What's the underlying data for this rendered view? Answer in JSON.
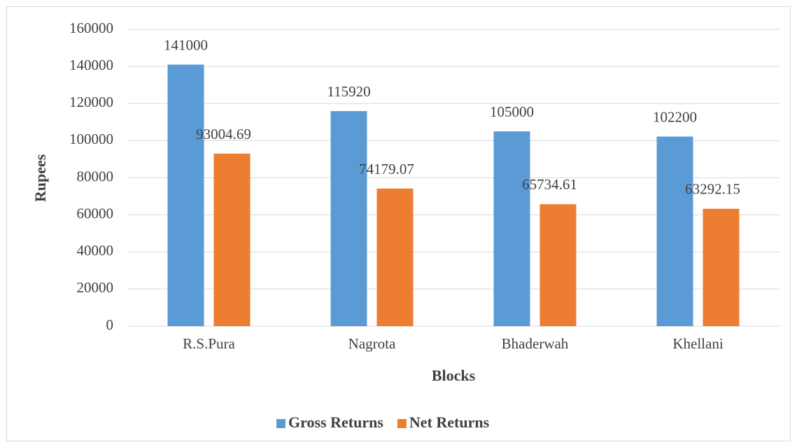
{
  "chart_data": {
    "type": "bar",
    "categories": [
      "R.S.Pura",
      "Nagrota",
      "Bhaderwah",
      "Khellani"
    ],
    "series": [
      {
        "name": "Gross Returns",
        "color": "#5b9bd5",
        "values": [
          141000,
          115920,
          105000,
          102200
        ]
      },
      {
        "name": "Net Returns",
        "color": "#ed7d31",
        "values": [
          93004.69,
          74179.07,
          65734.61,
          63292.15
        ]
      }
    ],
    "x_label": "Blocks",
    "y_label": "Rupees",
    "ylim": [
      0,
      160000
    ],
    "yticks": [
      0,
      20000,
      40000,
      60000,
      80000,
      100000,
      120000,
      140000,
      160000
    ],
    "grid": true,
    "legend": "bottom"
  }
}
